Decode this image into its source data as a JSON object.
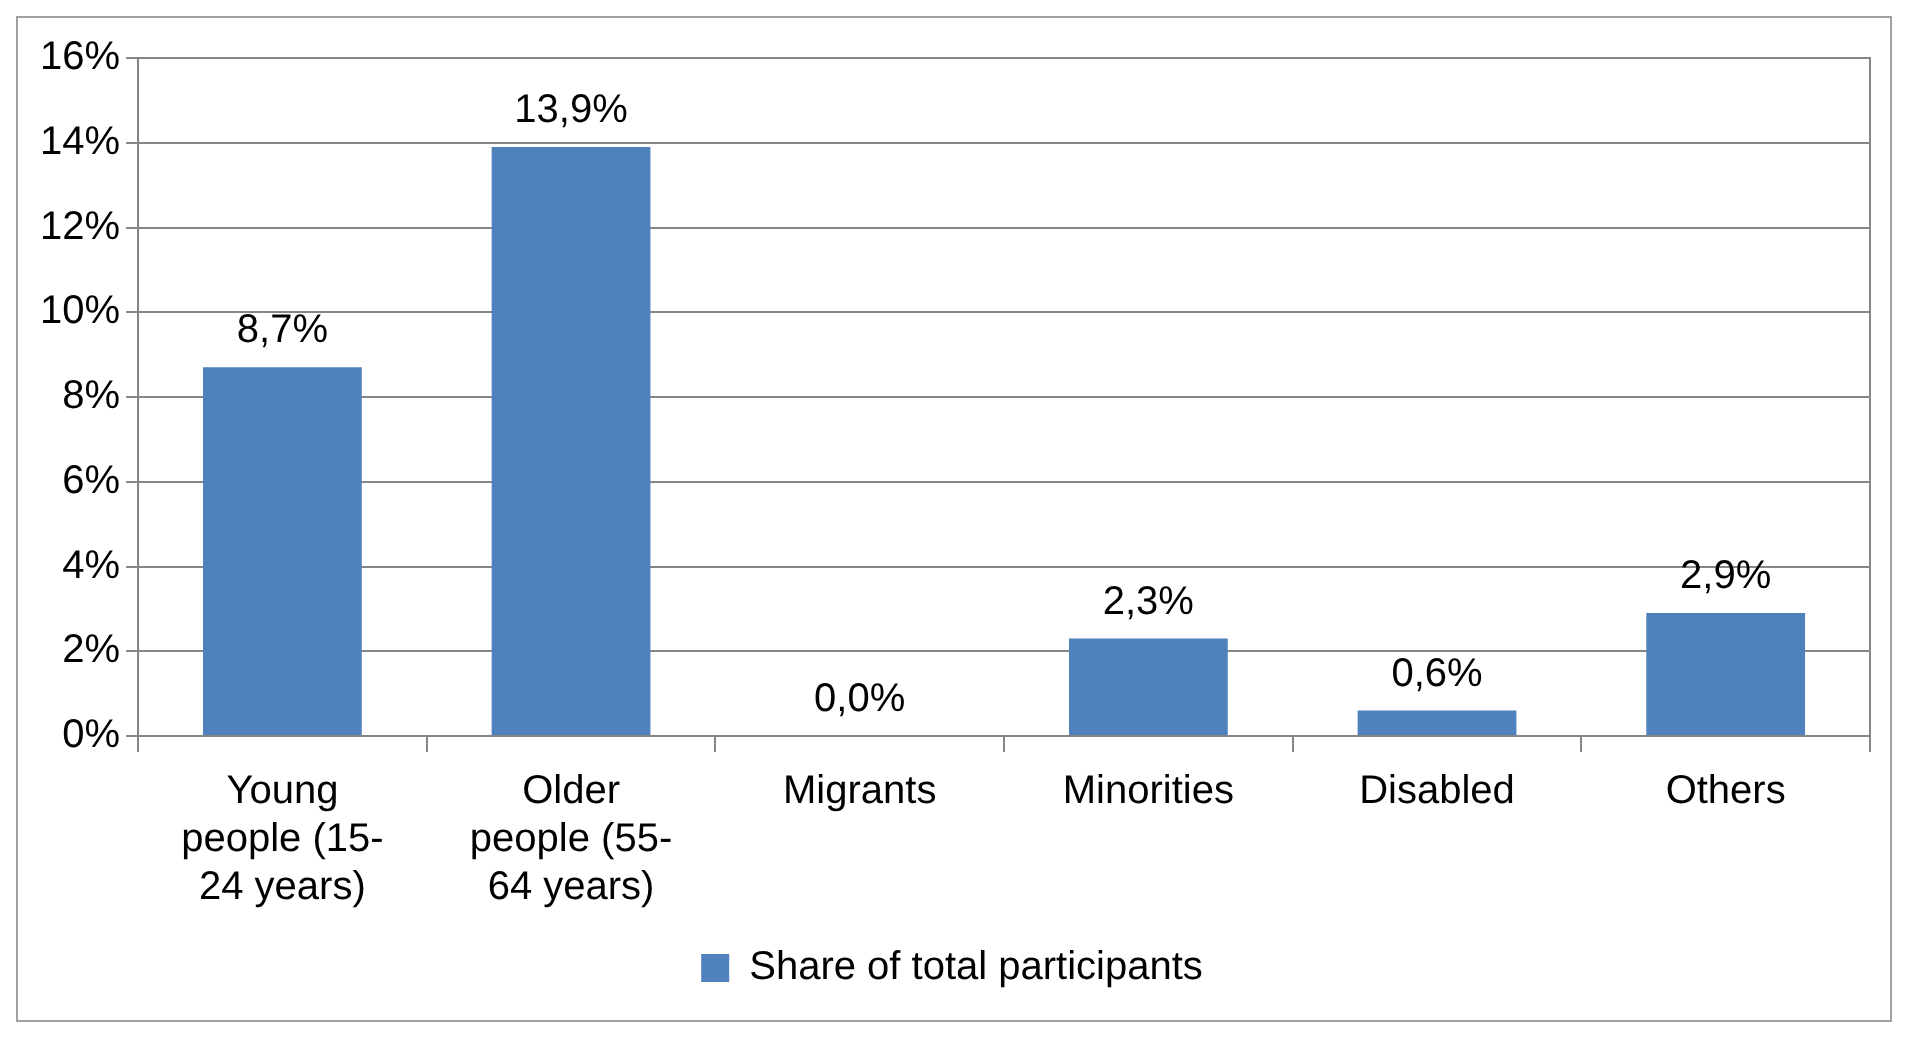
{
  "chart_data": {
    "type": "bar",
    "categories": [
      "Young people (15-24 years)",
      "Older people (55-64 years)",
      "Migrants",
      "Minorities",
      "Disabled",
      "Others"
    ],
    "series": [
      {
        "name": "Share of total participants",
        "color": "#4f81bd",
        "values": [
          8.7,
          13.9,
          0.0,
          2.3,
          0.6,
          2.9
        ],
        "value_labels": [
          "8,7%",
          "13,9%",
          "0,0%",
          "2,3%",
          "0,6%",
          "2,9%"
        ]
      }
    ],
    "ylim": [
      0,
      16
    ],
    "yticks": [
      {
        "value": 0,
        "label": "0%"
      },
      {
        "value": 2,
        "label": "2%"
      },
      {
        "value": 4,
        "label": "4%"
      },
      {
        "value": 6,
        "label": "6%"
      },
      {
        "value": 8,
        "label": "8%"
      },
      {
        "value": 10,
        "label": "10%"
      },
      {
        "value": 12,
        "label": "12%"
      },
      {
        "value": 14,
        "label": "14%"
      },
      {
        "value": 16,
        "label": "16%"
      }
    ],
    "grid": "y",
    "legend": "bottom"
  }
}
